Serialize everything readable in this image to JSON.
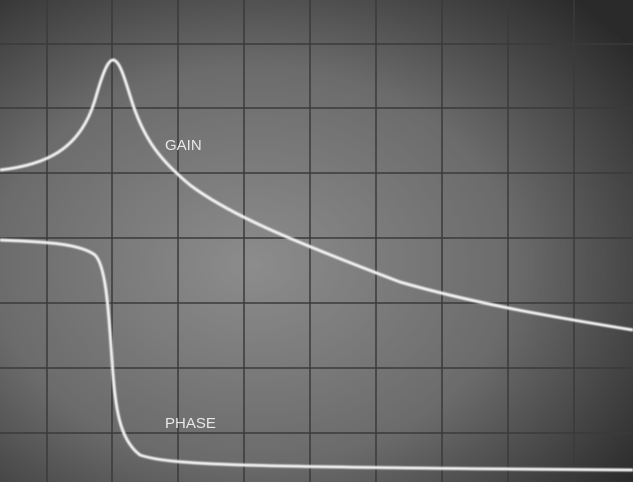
{
  "labels": {
    "gain": "GAIN",
    "phase": "PHASE"
  }
}
